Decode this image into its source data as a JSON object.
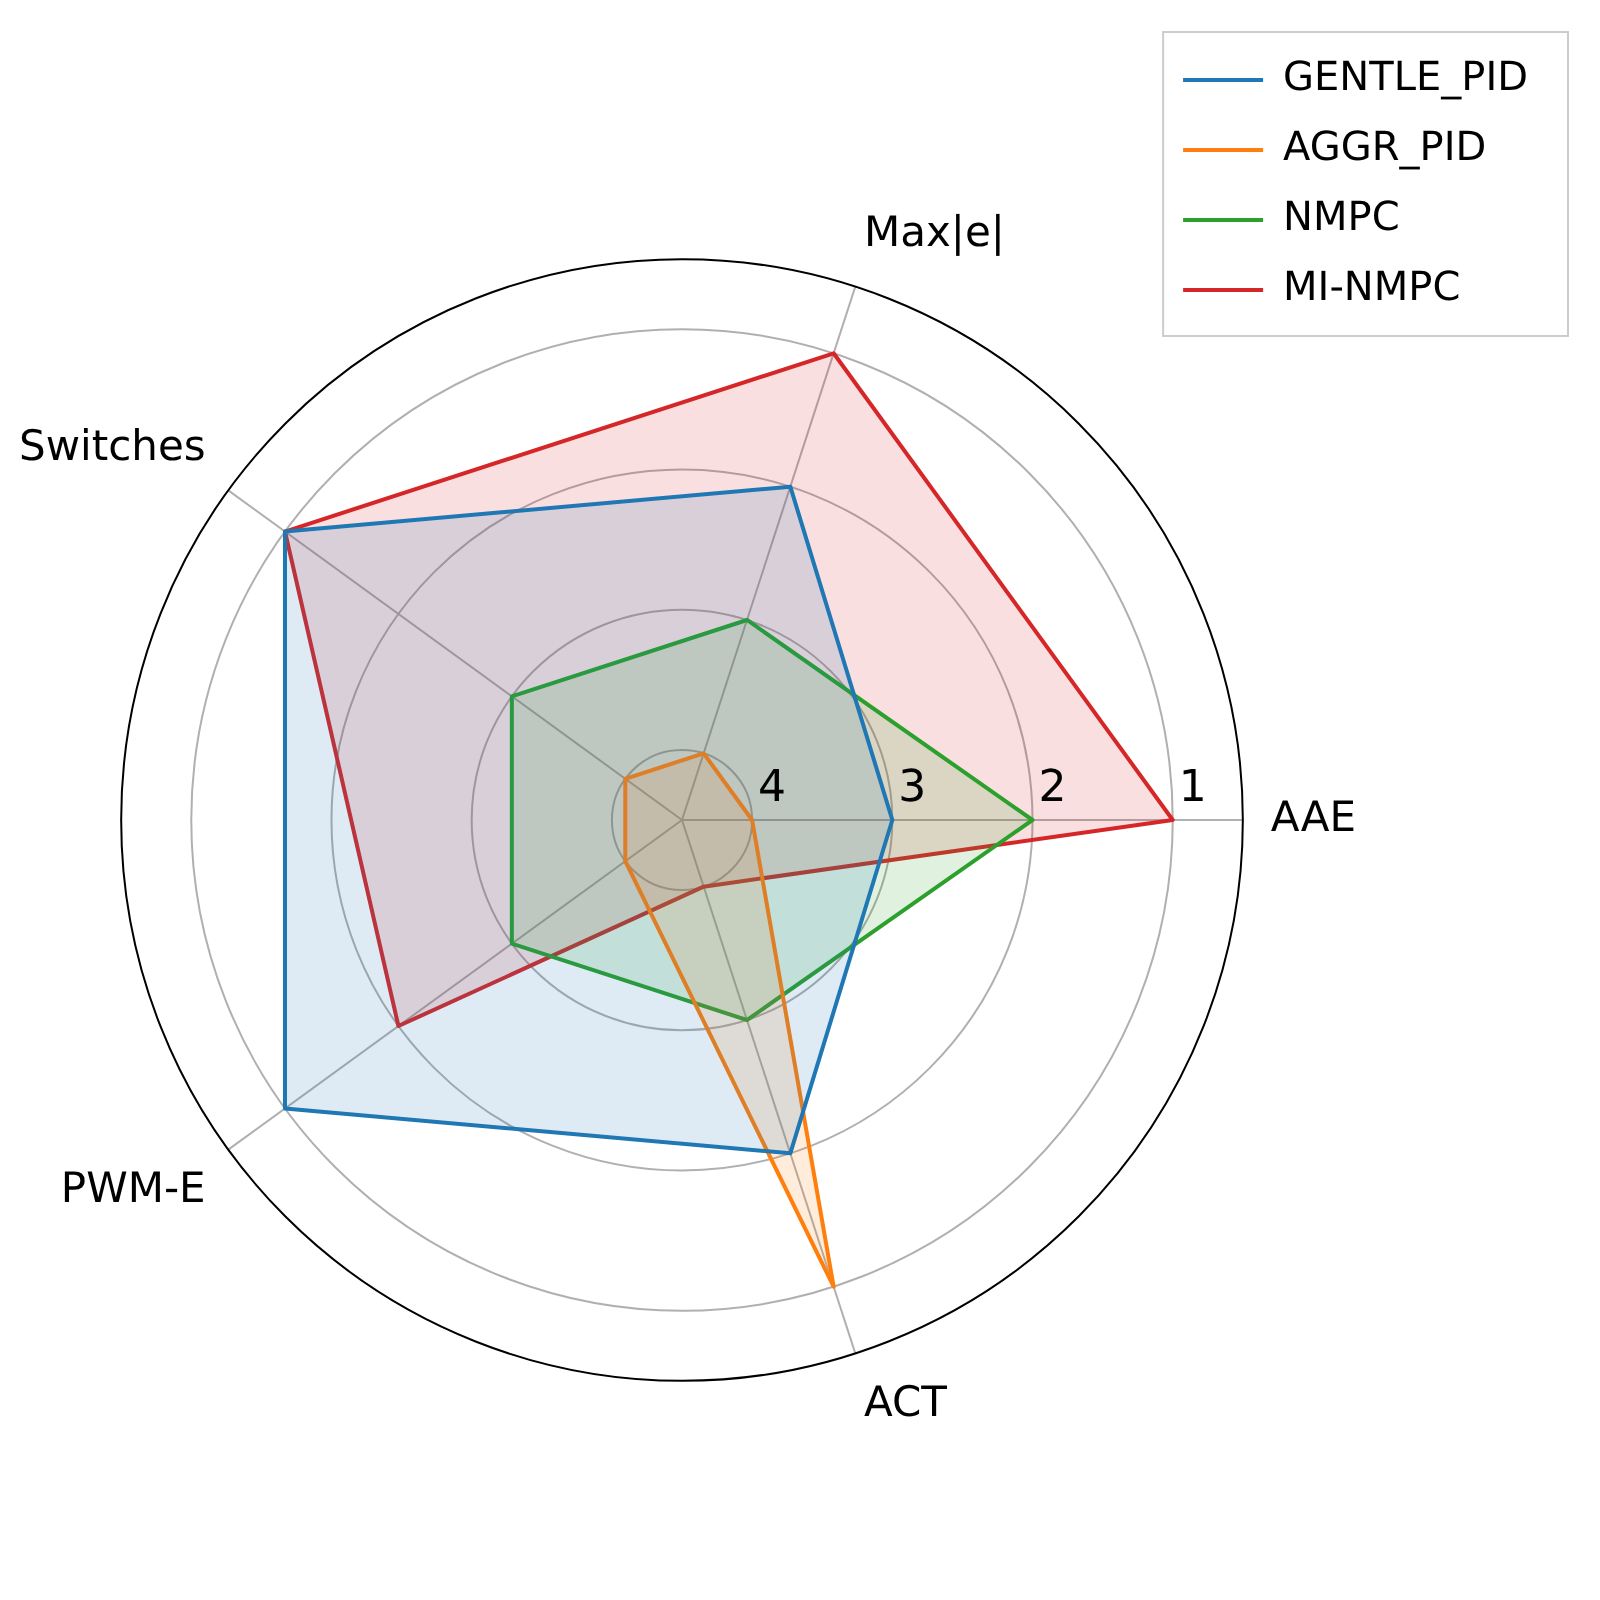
{
  "chart_data": {
    "type": "radar",
    "categories": [
      "Max|e|",
      "AAE",
      "ACT",
      "PWM-E",
      "Switches"
    ],
    "series": [
      {
        "name": "GENTLE_PID",
        "color": "#1f77b4",
        "values": [
          2,
          3,
          2,
          1,
          1
        ]
      },
      {
        "name": "AGGR_PID",
        "color": "#ff7f0e",
        "values": [
          4,
          4,
          1,
          4,
          4
        ]
      },
      {
        "name": "NMPC",
        "color": "#2ca02c",
        "values": [
          3,
          2,
          3,
          3,
          3
        ]
      },
      {
        "name": "MI-NMPC",
        "color": "#d62728",
        "values": [
          1,
          1,
          4,
          2,
          1
        ]
      }
    ],
    "ylim": [
      4.5,
      0.5
    ],
    "yticks": [
      4,
      3,
      2,
      1
    ],
    "grid": true,
    "legend": "top right",
    "marker": "none"
  }
}
